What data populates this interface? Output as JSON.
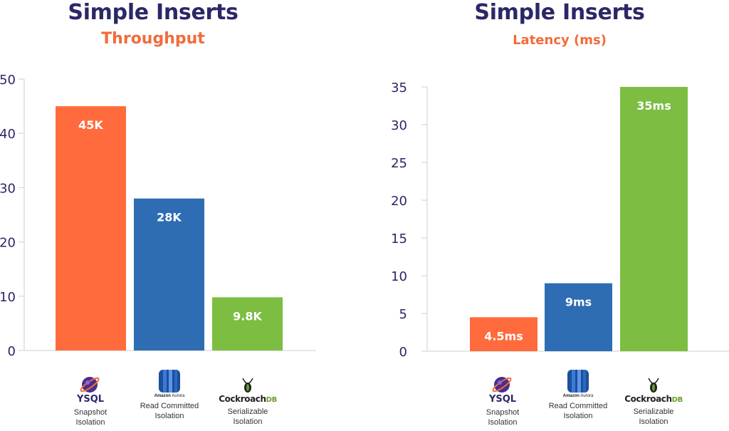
{
  "charts": [
    {
      "title": "Simple Inserts",
      "subtitle": "Throughput"
    },
    {
      "title": "Simple Inserts",
      "subtitle": "Latency (ms)"
    }
  ],
  "colors": {
    "ysql": "#ff6b3d",
    "aurora": "#2e6db3",
    "cockroach": "#7cbd42",
    "title": "#2b2767",
    "subtitle": "#f26b3a",
    "axis": "#2b2767"
  },
  "logos": {
    "ysql": {
      "icon": "ysql-galaxy-icon",
      "text": "YSQL",
      "caption_1": "Snapshot",
      "caption_2": "Isolation"
    },
    "aurora": {
      "icon": "amazon-aurora-icon",
      "text_1": "Amazon",
      "text_2": "Aurora",
      "caption_1": "Read Committed",
      "caption_2": "Isolation"
    },
    "cockroach": {
      "icon": "cockroach-icon",
      "text": "Cockroach",
      "text_suffix": "DB",
      "caption_1": "Serializable",
      "caption_2": "Isolation"
    }
  },
  "chart_data": [
    {
      "type": "bar",
      "title": "Simple Inserts",
      "subtitle": "Throughput",
      "categories": [
        "YSQL",
        "Amazon Aurora",
        "CockroachDB"
      ],
      "values": [
        45,
        28,
        9.8
      ],
      "data_labels": [
        "45K",
        "28K",
        "9.8K"
      ],
      "ylim": [
        0,
        50
      ],
      "yticks": [
        0,
        10,
        20,
        30,
        40,
        50
      ],
      "grid": false,
      "legend": "none"
    },
    {
      "type": "bar",
      "title": "Simple Inserts",
      "subtitle": "Latency (ms)",
      "categories": [
        "YSQL",
        "Amazon Aurora",
        "CockroachDB"
      ],
      "values": [
        4.5,
        9,
        35
      ],
      "data_labels": [
        "4.5ms",
        "9ms",
        "35ms"
      ],
      "ylim": [
        0,
        35
      ],
      "yticks": [
        0,
        5,
        10,
        15,
        20,
        25,
        30,
        35
      ],
      "grid": false,
      "legend": "none"
    }
  ]
}
